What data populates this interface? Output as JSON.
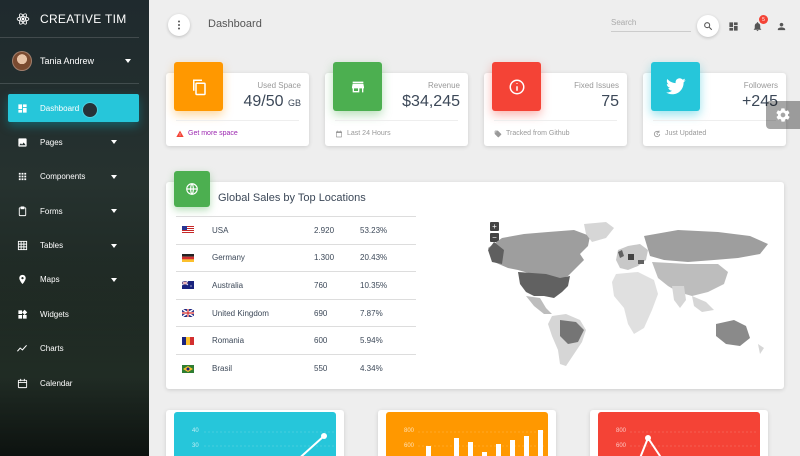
{
  "brand": {
    "name": "CREATIVE TIM"
  },
  "user": {
    "name": "Tania Andrew"
  },
  "nav": [
    {
      "label": "Dashboard",
      "icon": "dashboard-icon",
      "active": true
    },
    {
      "label": "Pages",
      "icon": "image-icon",
      "caret": true
    },
    {
      "label": "Components",
      "icon": "apps-icon",
      "caret": true
    },
    {
      "label": "Forms",
      "icon": "clipboard-icon",
      "caret": true
    },
    {
      "label": "Tables",
      "icon": "grid-icon",
      "caret": true
    },
    {
      "label": "Maps",
      "icon": "place-icon",
      "caret": true
    },
    {
      "label": "Widgets",
      "icon": "widgets-icon"
    },
    {
      "label": "Charts",
      "icon": "timeline-icon"
    },
    {
      "label": "Calendar",
      "icon": "calendar-icon"
    }
  ],
  "topbar": {
    "title": "Dashboard",
    "search_placeholder": "Search",
    "notification_count": "5"
  },
  "stats": [
    {
      "label": "Used Space",
      "value": "49/50",
      "unit": "GB",
      "footer": "Get more space",
      "color": "#ff9800",
      "icon": "copy-icon",
      "footer_icon": "warning-icon"
    },
    {
      "label": "Revenue",
      "value": "$34,245",
      "unit": "",
      "footer": "Last 24 Hours",
      "color": "#4caf50",
      "icon": "store-icon",
      "footer_icon": "date-range-icon"
    },
    {
      "label": "Fixed Issues",
      "value": "75",
      "unit": "",
      "footer": "Tracked from Github",
      "color": "#f44336",
      "icon": "info-icon",
      "footer_icon": "tag-icon"
    },
    {
      "label": "Followers",
      "value": "+245",
      "unit": "",
      "footer": "Just Updated",
      "color": "#26c6da",
      "icon": "twitter-icon",
      "footer_icon": "update-icon"
    }
  ],
  "sales": {
    "title": "Global Sales by Top Locations",
    "rows": [
      {
        "country": "USA",
        "value": "2.920",
        "percent": "53.23%"
      },
      {
        "country": "Germany",
        "value": "1.300",
        "percent": "20.43%"
      },
      {
        "country": "Australia",
        "value": "760",
        "percent": "10.35%"
      },
      {
        "country": "United Kingdom",
        "value": "690",
        "percent": "7.87%"
      },
      {
        "country": "Romania",
        "value": "600",
        "percent": "5.94%"
      },
      {
        "country": "Brasil",
        "value": "550",
        "percent": "4.34%"
      }
    ]
  },
  "bottom_charts": [
    {
      "color": "#26c6da",
      "labels": [
        "40",
        "30"
      ]
    },
    {
      "color": "#ff9800",
      "labels": [
        "800",
        "600"
      ]
    },
    {
      "color": "#f44336",
      "labels": [
        "800",
        "600"
      ]
    }
  ]
}
